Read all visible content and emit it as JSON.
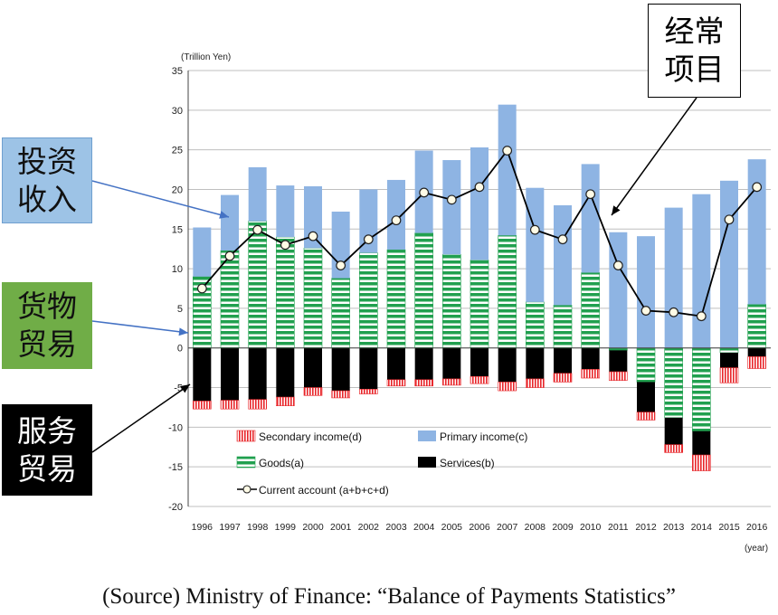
{
  "callouts": {
    "invest": "投资\n收入",
    "goods": "货物\n贸易",
    "service": "服务\n贸易",
    "current": "经常\n项目"
  },
  "source": "(Source) Ministry of Finance: “Balance of Payments Statistics”",
  "chart_data": {
    "type": "bar",
    "stacked": true,
    "ylabel": "(Trillion Yen)",
    "xlabel": "(year)",
    "ylim": [
      -20,
      35
    ],
    "yticks": [
      -20,
      -15,
      -10,
      -5,
      0,
      5,
      10,
      15,
      20,
      25,
      30,
      35
    ],
    "grid": true,
    "categories": [
      "1996",
      "1997",
      "1998",
      "1999",
      "2000",
      "2001",
      "2002",
      "2003",
      "2004",
      "2005",
      "2006",
      "2007",
      "2008",
      "2009",
      "2010",
      "2011",
      "2012",
      "2013",
      "2014",
      "2015",
      "2016"
    ],
    "series": [
      {
        "name": "Goods(a)",
        "key": "goods",
        "color": "#21a04f",
        "pattern": "hstripe-green",
        "values": [
          9.0,
          12.3,
          16.0,
          14.0,
          12.6,
          8.8,
          12.0,
          12.4,
          14.5,
          11.8,
          11.1,
          14.2,
          5.8,
          5.4,
          9.5,
          -0.3,
          -4.3,
          -8.8,
          -10.5,
          -0.6,
          5.5
        ]
      },
      {
        "name": "Services(b)",
        "key": "services",
        "color": "#000000",
        "values": [
          -6.7,
          -6.6,
          -6.5,
          -6.2,
          -5.0,
          -5.4,
          -5.2,
          -4.0,
          -4.0,
          -3.9,
          -3.6,
          -4.3,
          -3.9,
          -3.2,
          -2.7,
          -2.7,
          -3.8,
          -3.4,
          -3.0,
          -1.9,
          -1.1
        ]
      },
      {
        "name": "Primary income(c)",
        "key": "primary",
        "color": "#8eb4e3",
        "values": [
          6.2,
          7.0,
          6.8,
          6.5,
          7.8,
          8.4,
          8.0,
          8.8,
          10.4,
          11.9,
          14.2,
          16.5,
          14.4,
          12.6,
          13.7,
          14.6,
          14.1,
          17.7,
          19.4,
          21.1,
          18.3
        ]
      },
      {
        "name": "Secondary income(d)",
        "key": "secondary",
        "color": "#e8262a",
        "pattern": "vstripe-red",
        "values": [
          -1.0,
          -1.1,
          -1.2,
          -1.1,
          -1.0,
          -0.9,
          -0.6,
          -0.8,
          -0.8,
          -0.8,
          -0.9,
          -1.1,
          -1.1,
          -1.1,
          -1.1,
          -1.1,
          -1.0,
          -1.0,
          -2.0,
          -1.9,
          -1.5
        ]
      },
      {
        "name": "Current account (a+b+c+d)",
        "key": "current",
        "type": "line",
        "color": "#000000",
        "values": [
          7.5,
          11.6,
          14.9,
          13.0,
          14.1,
          10.4,
          13.7,
          16.1,
          19.6,
          18.7,
          20.3,
          24.9,
          14.9,
          13.7,
          19.4,
          10.4,
          4.7,
          4.5,
          4.0,
          16.2,
          20.3
        ]
      }
    ],
    "legend": [
      {
        "label": "Secondary income(d)",
        "key": "secondary"
      },
      {
        "label": "Primary income(c)",
        "key": "primary"
      },
      {
        "label": "Goods(a)",
        "key": "goods"
      },
      {
        "label": "Services(b)",
        "key": "services"
      },
      {
        "label": "Current account (a+b+c+d)",
        "key": "current"
      }
    ]
  }
}
